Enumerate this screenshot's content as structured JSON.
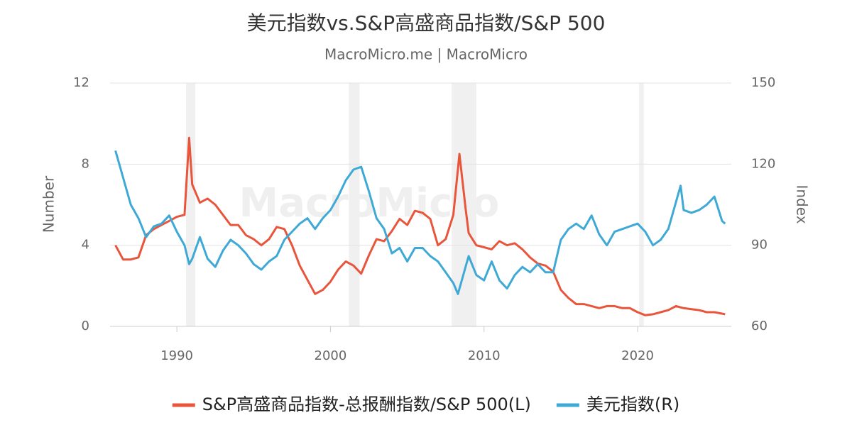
{
  "chart_data": {
    "type": "line",
    "title": "美元指数vs.S&P高盛商品指数/S&P 500",
    "subtitle": "MacroMicro.me | MacroMicro",
    "watermark": "MacroMicro",
    "y_label": "Number",
    "y2_label": "Index",
    "xlim": [
      1985.65,
      2026.1
    ],
    "xticks": [
      1990,
      2000,
      2010,
      2020
    ],
    "ylim": [
      0,
      12
    ],
    "yticks": [
      0,
      4,
      8,
      12
    ],
    "y2lim": [
      60,
      150
    ],
    "y2ticks": [
      60,
      90,
      120,
      150
    ],
    "grid": true,
    "legend": "bottom",
    "shaded_ranges": [
      [
        1990.6,
        1991.2
      ],
      [
        2001.2,
        2001.9
      ],
      [
        2007.9,
        2009.5
      ],
      [
        2020.1,
        2020.4
      ]
    ],
    "shade_color": "#f0f0f0",
    "series": [
      {
        "name": "S&P高盛商品指数-总报酬指数/S&P 500(L)",
        "color": "#e8553b",
        "x": [
          1986,
          1986.5,
          1987,
          1987.5,
          1988,
          1988.5,
          1989,
          1989.5,
          1990,
          1990.5,
          1990.8,
          1991,
          1991.5,
          1992,
          1992.5,
          1993,
          1993.5,
          1994,
          1994.5,
          1995,
          1995.5,
          1996,
          1996.5,
          1997,
          1997.5,
          1998,
          1998.5,
          1999,
          1999.5,
          2000,
          2000.5,
          2001,
          2001.5,
          2002,
          2002.5,
          2003,
          2003.5,
          2004,
          2004.5,
          2005,
          2005.5,
          2006,
          2006.5,
          2007,
          2007.5,
          2008,
          2008.4,
          2008.8,
          2009,
          2009.5,
          2010,
          2010.5,
          2011,
          2011.5,
          2012,
          2012.5,
          2013,
          2013.5,
          2014,
          2014.5,
          2015,
          2015.5,
          2016,
          2016.5,
          2017,
          2017.5,
          2018,
          2018.5,
          2019,
          2019.5,
          2020,
          2020.5,
          2021,
          2021.5,
          2022,
          2022.5,
          2023,
          2023.5,
          2024,
          2024.5,
          2025,
          2025.7
        ],
        "values": [
          4.0,
          3.3,
          3.3,
          3.4,
          4.5,
          4.8,
          5.0,
          5.2,
          5.4,
          5.5,
          9.3,
          7.0,
          6.1,
          6.3,
          6.0,
          5.5,
          5.0,
          5.0,
          4.5,
          4.3,
          4.0,
          4.3,
          4.9,
          4.8,
          4.0,
          3.0,
          2.3,
          1.6,
          1.8,
          2.2,
          2.8,
          3.2,
          3.0,
          2.6,
          3.5,
          4.3,
          4.2,
          4.7,
          5.3,
          5.0,
          5.7,
          5.6,
          5.3,
          4.0,
          4.3,
          5.5,
          8.5,
          5.8,
          4.6,
          4.0,
          3.9,
          3.8,
          4.2,
          4.0,
          4.1,
          3.8,
          3.4,
          3.1,
          3.0,
          2.7,
          1.8,
          1.4,
          1.1,
          1.1,
          1.0,
          0.9,
          1.0,
          1.0,
          0.9,
          0.9,
          0.7,
          0.55,
          0.6,
          0.7,
          0.8,
          1.0,
          0.9,
          0.85,
          0.8,
          0.7,
          0.7,
          0.6
        ]
      },
      {
        "name": "美元指数(R)",
        "color": "#3fa9d6",
        "axis": "y2",
        "x": [
          1986,
          1986.5,
          1987,
          1987.5,
          1988,
          1988.5,
          1989,
          1989.5,
          1990,
          1990.5,
          1990.8,
          1991,
          1991.5,
          1992,
          1992.5,
          1993,
          1993.5,
          1994,
          1994.5,
          1995,
          1995.5,
          1996,
          1996.5,
          1997,
          1997.5,
          1998,
          1998.5,
          1999,
          1999.5,
          2000,
          2000.5,
          2001,
          2001.5,
          2002,
          2002.5,
          2003,
          2003.5,
          2004,
          2004.5,
          2005,
          2005.5,
          2006,
          2006.5,
          2007,
          2007.5,
          2008,
          2008.3,
          2008.9,
          2009,
          2009.5,
          2010,
          2010.5,
          2011,
          2011.5,
          2012,
          2012.5,
          2013,
          2013.5,
          2014,
          2014.5,
          2015,
          2015.5,
          2016,
          2016.5,
          2017,
          2017.5,
          2018,
          2018.5,
          2019,
          2019.5,
          2020,
          2020.5,
          2021,
          2021.5,
          2022,
          2022.5,
          2022.8,
          2023,
          2023.5,
          2024,
          2024.5,
          2025,
          2025.5,
          2025.7
        ],
        "values": [
          125,
          115,
          105,
          100,
          93,
          97,
          98,
          101,
          95,
          90,
          83,
          85,
          93,
          85,
          82,
          88,
          92,
          90,
          87,
          83,
          81,
          84,
          86,
          92,
          95,
          98,
          100,
          96,
          100,
          103,
          108,
          114,
          118,
          119,
          110,
          100,
          96,
          87,
          89,
          84,
          89,
          89,
          86,
          84,
          80,
          76,
          72,
          84,
          86,
          79,
          77,
          84,
          77,
          74,
          79,
          82,
          80,
          83,
          80,
          80,
          92,
          96,
          98,
          96,
          101,
          94,
          90,
          95,
          96,
          97,
          98,
          95,
          90,
          92,
          96,
          106,
          112,
          103,
          102,
          103,
          105,
          108,
          99,
          98
        ]
      }
    ]
  }
}
